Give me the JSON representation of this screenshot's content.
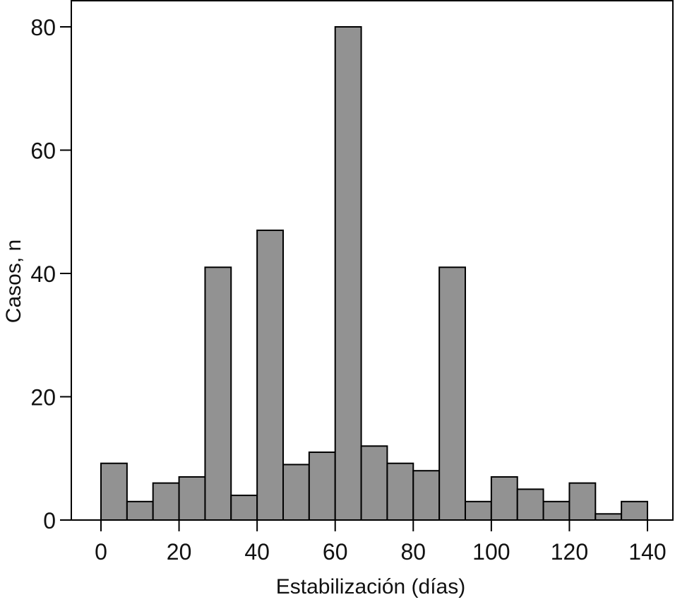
{
  "chart_data": {
    "type": "bar",
    "subtype": "histogram",
    "title": "",
    "xlabel": "Estabilización (días)",
    "ylabel": "Casos, n",
    "bin_width": 6.67,
    "x_range": [
      0,
      140
    ],
    "xlim": [
      -7,
      146
    ],
    "ylim": [
      0,
      80
    ],
    "x_ticks": [
      0,
      20,
      40,
      60,
      80,
      100,
      120,
      140
    ],
    "y_ticks": [
      0,
      20,
      40,
      60,
      80
    ],
    "grid": false,
    "legend": "none",
    "bins": [
      {
        "start": 0.0,
        "end": 6.67,
        "count": 9.2
      },
      {
        "start": 6.67,
        "end": 13.33,
        "count": 3
      },
      {
        "start": 13.33,
        "end": 20.0,
        "count": 6
      },
      {
        "start": 20.0,
        "end": 26.67,
        "count": 7
      },
      {
        "start": 26.67,
        "end": 33.33,
        "count": 41
      },
      {
        "start": 33.33,
        "end": 40.0,
        "count": 4
      },
      {
        "start": 40.0,
        "end": 46.67,
        "count": 47
      },
      {
        "start": 46.67,
        "end": 53.33,
        "count": 9
      },
      {
        "start": 53.33,
        "end": 60.0,
        "count": 11
      },
      {
        "start": 60.0,
        "end": 66.67,
        "count": 80
      },
      {
        "start": 66.67,
        "end": 73.33,
        "count": 12
      },
      {
        "start": 73.33,
        "end": 80.0,
        "count": 9.2
      },
      {
        "start": 80.0,
        "end": 86.67,
        "count": 8
      },
      {
        "start": 86.67,
        "end": 93.33,
        "count": 41
      },
      {
        "start": 93.33,
        "end": 100.0,
        "count": 3
      },
      {
        "start": 100.0,
        "end": 106.67,
        "count": 7
      },
      {
        "start": 106.67,
        "end": 113.33,
        "count": 5
      },
      {
        "start": 113.33,
        "end": 120.0,
        "count": 3
      },
      {
        "start": 120.0,
        "end": 126.67,
        "count": 6
      },
      {
        "start": 126.67,
        "end": 133.33,
        "count": 1
      },
      {
        "start": 133.33,
        "end": 140.0,
        "count": 3
      }
    ],
    "colors": {
      "bar_fill": "#929292",
      "bar_stroke": "#000000",
      "axis": "#000000",
      "background": "#ffffff"
    }
  }
}
